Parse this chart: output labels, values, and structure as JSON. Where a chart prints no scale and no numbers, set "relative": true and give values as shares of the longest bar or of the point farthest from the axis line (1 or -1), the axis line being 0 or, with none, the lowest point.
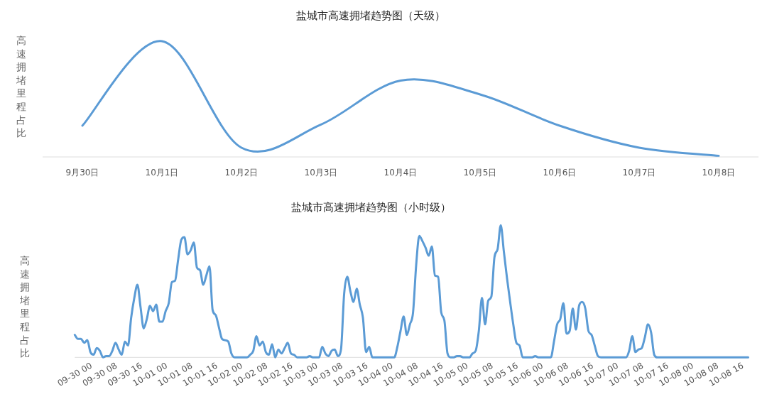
{
  "chart_data": [
    {
      "type": "line",
      "title": "盐城市高速拥堵趋势图（天级）",
      "ylabel": "高速拥堵里程占比",
      "relative": true,
      "color": "#5b9bd5",
      "categories": [
        "9月30日",
        "10月1日",
        "10月2日",
        "10月3日",
        "10月4日",
        "10月5日",
        "10月6日",
        "10月7日",
        "10月8日"
      ],
      "values": [
        0.27,
        1,
        0.08,
        0.28,
        0.66,
        0.54,
        0.27,
        0.08,
        0.01
      ]
    },
    {
      "type": "line",
      "title": "盐城市高速拥堵趋势图（小时级）",
      "ylabel": "高速拥堵里程占比",
      "relative": true,
      "color": "#5b9bd5",
      "categories": [
        "09-30 00",
        null,
        null,
        null,
        null,
        null,
        null,
        null,
        "09-30 08",
        null,
        null,
        null,
        null,
        null,
        null,
        null,
        "09-30 16",
        null,
        null,
        null,
        null,
        null,
        null,
        null,
        "10-01 00",
        null,
        null,
        null,
        null,
        null,
        null,
        null,
        "10-01 08",
        null,
        null,
        null,
        null,
        null,
        null,
        null,
        "10-01 16",
        null,
        null,
        null,
        null,
        null,
        null,
        null,
        "10-02 00",
        null,
        null,
        null,
        null,
        null,
        null,
        null,
        "10-02 08",
        null,
        null,
        null,
        null,
        null,
        null,
        null,
        "10-02 16",
        null,
        null,
        null,
        null,
        null,
        null,
        null,
        "10-03 00",
        null,
        null,
        null,
        null,
        null,
        null,
        null,
        "10-03 08",
        null,
        null,
        null,
        null,
        null,
        null,
        null,
        "10-03 16",
        null,
        null,
        null,
        null,
        null,
        null,
        null,
        "10-04 00",
        null,
        null,
        null,
        null,
        null,
        null,
        null,
        "10-04 08",
        null,
        null,
        null,
        null,
        null,
        null,
        null,
        "10-04 16",
        null,
        null,
        null,
        null,
        null,
        null,
        null,
        "10-05 00",
        null,
        null,
        null,
        null,
        null,
        null,
        null,
        "10-05 08",
        null,
        null,
        null,
        null,
        null,
        null,
        null,
        "10-05 16",
        null,
        null,
        null,
        null,
        null,
        null,
        null,
        "10-06 00",
        null,
        null,
        null,
        null,
        null,
        null,
        null,
        "10-06 08",
        null,
        null,
        null,
        null,
        null,
        null,
        null,
        "10-06 16",
        null,
        null,
        null,
        null,
        null,
        null,
        null,
        "10-07 00",
        null,
        null,
        null,
        null,
        null,
        null,
        null,
        "10-07 08",
        null,
        null,
        null,
        null,
        null,
        null,
        null,
        "10-07 16",
        null,
        null,
        null,
        null,
        null,
        null,
        null,
        "10-08 00",
        null,
        null,
        null,
        null,
        null,
        null,
        null,
        "10-08 08",
        null,
        null,
        null,
        null,
        null,
        null,
        null,
        "10-08 16",
        null,
        null,
        null,
        null,
        null,
        null,
        null
      ],
      "values": [
        0.17,
        0.14,
        0.14,
        0.11,
        0.13,
        0.04,
        0.02,
        0.07,
        0.05,
        0,
        0.01,
        0.01,
        0.05,
        0.11,
        0.06,
        0.02,
        0.12,
        0.09,
        0.3,
        0.45,
        0.55,
        0.38,
        0.22,
        0.29,
        0.39,
        0.35,
        0.4,
        0.27,
        0.27,
        0.35,
        0.41,
        0.57,
        0.58,
        0.74,
        0.89,
        0.91,
        0.78,
        0.81,
        0.87,
        0.68,
        0.66,
        0.55,
        0.62,
        0.69,
        0.36,
        0.32,
        0.23,
        0.14,
        0.13,
        0.12,
        0.03,
        0,
        0,
        0,
        0,
        0,
        0.02,
        0.05,
        0.16,
        0.09,
        0.12,
        0.04,
        0.02,
        0.1,
        0,
        0.06,
        0.03,
        0.07,
        0.11,
        0.03,
        0.02,
        0,
        0,
        0,
        0,
        0.01,
        0,
        0,
        0,
        0.08,
        0.03,
        0.01,
        0.05,
        0.06,
        0.01,
        0.06,
        0.48,
        0.61,
        0.5,
        0.42,
        0.52,
        0.4,
        0.3,
        0.04,
        0.08,
        0,
        0,
        0,
        0,
        0,
        0,
        0,
        0,
        0.08,
        0.2,
        0.31,
        0.17,
        0.25,
        0.34,
        0.7,
        0.92,
        0.88,
        0.83,
        0.77,
        0.84,
        0.62,
        0.61,
        0.34,
        0.28,
        0.03,
        0,
        0,
        0.01,
        0.01,
        0,
        0,
        0,
        0.03,
        0.05,
        0.2,
        0.45,
        0.25,
        0.43,
        0.46,
        0.76,
        0.82,
        1,
        0.8,
        0.6,
        0.42,
        0.25,
        0.11,
        0.09,
        0,
        0,
        0,
        0,
        0.01,
        0,
        0,
        0,
        0,
        0,
        0.12,
        0.25,
        0.29,
        0.41,
        0.18,
        0.2,
        0.37,
        0.21,
        0.39,
        0.42,
        0.37,
        0.2,
        0.17,
        0.09,
        0.01,
        0,
        0,
        0,
        0,
        0,
        0,
        0,
        0,
        0,
        0.05,
        0.16,
        0.04,
        0.06,
        0.07,
        0.15,
        0.25,
        0.19,
        0.02,
        0,
        0,
        0,
        0,
        0,
        0,
        0,
        0,
        0,
        0,
        0,
        0,
        0,
        0,
        0,
        0,
        0,
        0,
        0,
        0,
        0,
        0,
        0,
        0,
        0,
        0,
        0,
        0,
        0,
        0
      ]
    }
  ]
}
